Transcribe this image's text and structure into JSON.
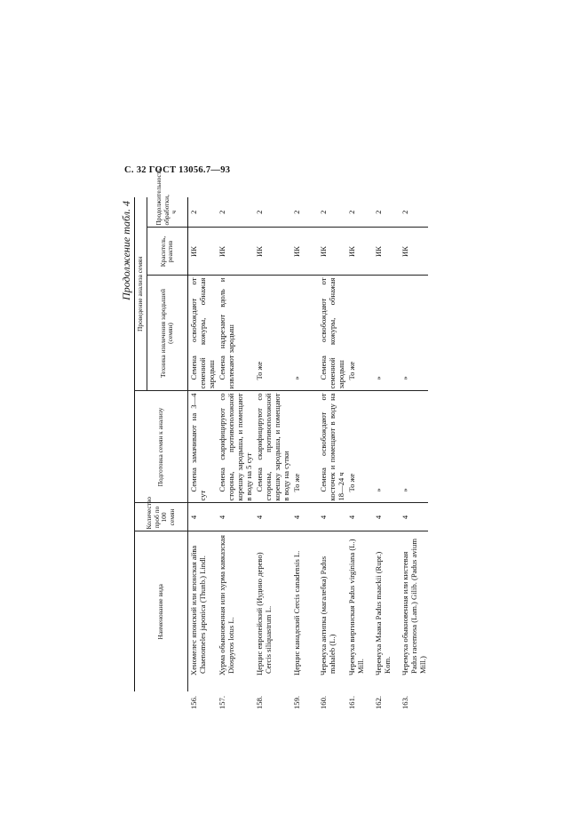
{
  "page_header": "С. 32 ГОСТ 13056.7—93",
  "caption": "Продолжение табл. 4",
  "headers": {
    "name": "Наименование вида",
    "count": "Количество проб по 100 семян",
    "prep": "Подготовка семян к анализу",
    "group": "Проведение анализа семян",
    "tech": "Техника извлечения зародышей (семян)",
    "dye": "Краситель, реактив",
    "duration": "Продолжительность обработки, ч"
  },
  "rows": [
    {
      "no": "156.",
      "name": "Хеномелес японский или японская айва Chaenomeles japonica (Thunb.) Lindl.",
      "count": "4",
      "prep": "Семена замачивают на 3—4 сут",
      "tech": "Семена освобождают от семенной кожуры, обнажая зародыш",
      "dye": "ИК",
      "duration": "2"
    },
    {
      "no": "157.",
      "name": "Хурма обыкновенная или хурма кавказская Diospyros lotus L.",
      "count": "4",
      "prep": "Семена скарифицируют со стороны, противоположной корешку зародыша, и помещают в воду на 5 сут",
      "tech": "Семена надрезают вдоль и извлекают зародыш",
      "dye": "ИК",
      "duration": "2"
    },
    {
      "no": "158.",
      "name": "Церцис европейский (Иудино дерево) Cercis siliquastrum L.",
      "count": "4",
      "prep": "Семена скарифицируют со стороны, противоположной корешку зародыша, и помещают в воду на сутки",
      "tech": "То же",
      "dye": "ИК",
      "duration": "2"
    },
    {
      "no": "159.",
      "name": "Церцис канадский Cercis canadensis L.",
      "count": "4",
      "prep": "То же",
      "tech": "»",
      "dye": "ИК",
      "duration": "2"
    },
    {
      "no": "160.",
      "name": "Черемуха антипка (магалебка) Padus mahaleb (L.)",
      "count": "4",
      "prep": "Семена освобождают от косточек и помещают в воду на 18—24 ч",
      "tech": "Семена освобождают от семенной кожуры, обнажая зародыш",
      "dye": "ИК",
      "duration": "2"
    },
    {
      "no": "161.",
      "name": "Черемуха виргинская Padus virginiana (L.) Mill.",
      "count": "4",
      "prep": "То же",
      "tech": "То же",
      "dye": "ИК",
      "duration": "2"
    },
    {
      "no": "162.",
      "name": "Черемуха Маака Padus maackii (Rupr.) Kom.",
      "count": "4",
      "prep": "»",
      "tech": "»",
      "dye": "ИК",
      "duration": "2"
    },
    {
      "no": "163.",
      "name": "Черемуха обыкновенная или кистевая Padus racemosa (Lam.) Gilib. (Padus avium Mill.)",
      "count": "4",
      "prep": "»",
      "tech": "»",
      "dye": "ИК",
      "duration": "2"
    }
  ]
}
